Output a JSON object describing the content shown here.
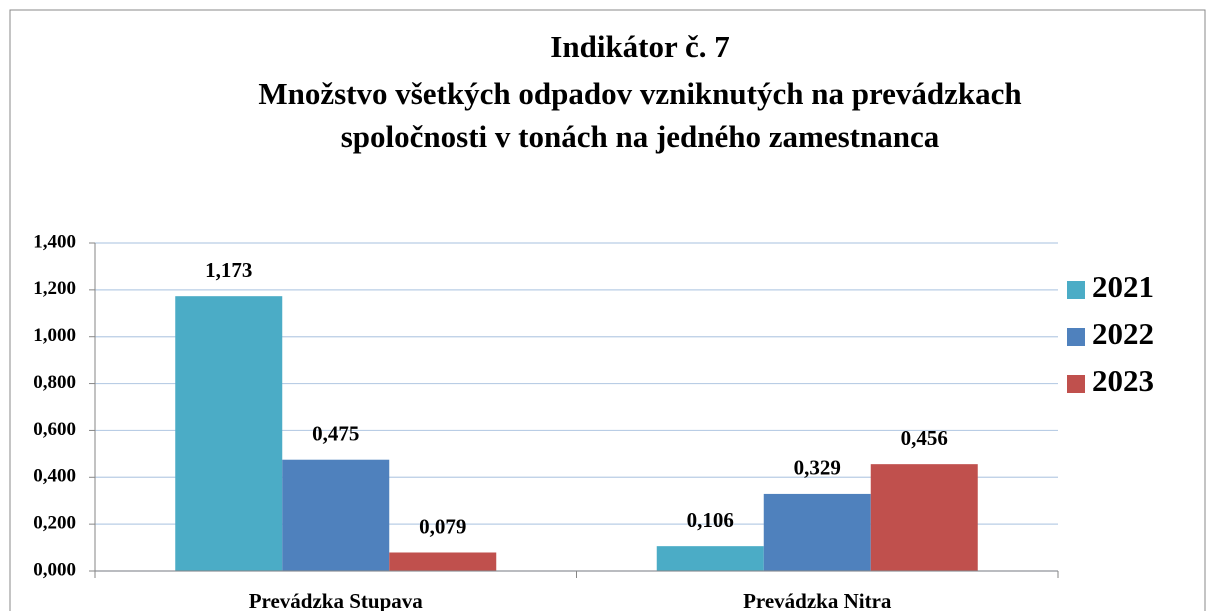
{
  "chart_data": {
    "type": "bar",
    "title": [
      "Indikátor č. 7",
      "Množstvo všetkých odpadov vzniknutých na prevádzkach",
      "spoločnosti v tonách na jedného zamestnanca"
    ],
    "categories": [
      "Prevádzka Stupava",
      "Prevádzka Nitra"
    ],
    "series": [
      {
        "name": "2021",
        "color": "#4bacc6",
        "values": [
          1.173,
          0.106
        ],
        "value_labels": [
          "1,173",
          "0,106"
        ]
      },
      {
        "name": "2022",
        "color": "#4f81bd",
        "values": [
          0.475,
          0.329
        ],
        "value_labels": [
          "0,475",
          "0,329"
        ]
      },
      {
        "name": "2023",
        "color": "#c0504d",
        "values": [
          0.079,
          0.456
        ],
        "value_labels": [
          "0,079",
          "0,456"
        ]
      }
    ],
    "ylim": [
      0,
      1.4
    ],
    "yticks": [
      {
        "value": 0,
        "label": "0,000"
      },
      {
        "value": 0.2,
        "label": "0,200"
      },
      {
        "value": 0.4,
        "label": "0,400"
      },
      {
        "value": 0.6,
        "label": "0,600"
      },
      {
        "value": 0.8,
        "label": "0,800"
      },
      {
        "value": 1.0,
        "label": "1,000"
      },
      {
        "value": 1.2,
        "label": "1,200"
      },
      {
        "value": 1.4,
        "label": "1,400"
      }
    ],
    "grid": true,
    "legend": "right"
  }
}
